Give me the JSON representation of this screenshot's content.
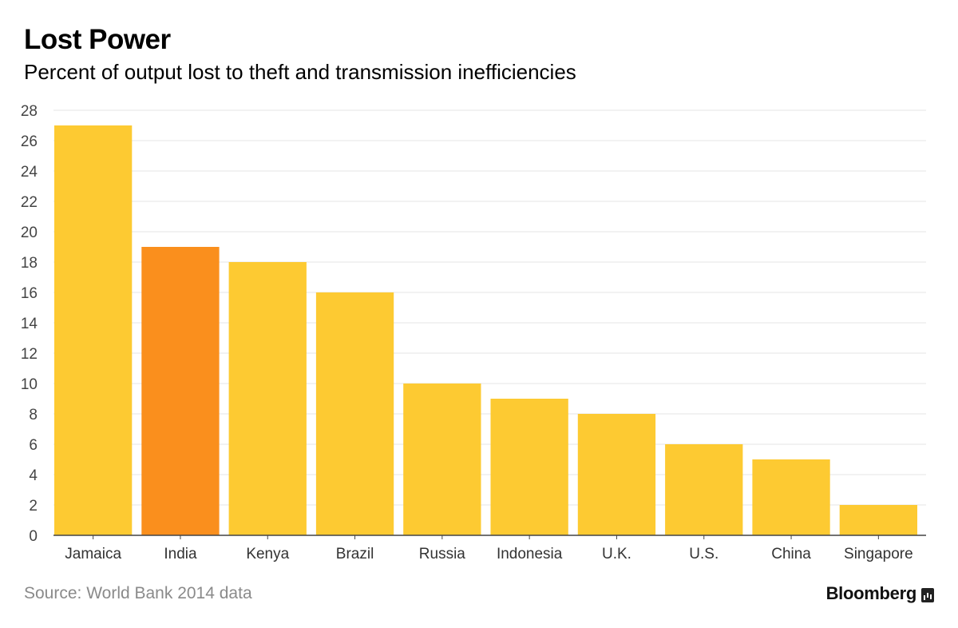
{
  "header": {
    "title": "Lost Power",
    "subtitle": "Percent of output lost to theft and transmission inefficiencies"
  },
  "footer": {
    "source": "Source: World Bank 2014 data",
    "brand": "Bloomberg"
  },
  "colors": {
    "bar": "#fdca32",
    "highlight": "#fa8f1d",
    "grid": "#e5e5e5",
    "axis": "#444444"
  },
  "chart_data": {
    "type": "bar",
    "title": "Lost Power",
    "subtitle": "Percent of output lost to theft and transmission inefficiencies",
    "xlabel": "",
    "ylabel": "",
    "categories": [
      "Jamaica",
      "India",
      "Kenya",
      "Brazil",
      "Russia",
      "Indonesia",
      "U.K.",
      "U.S.",
      "China",
      "Singapore"
    ],
    "values": [
      27,
      19,
      18,
      16,
      10,
      9,
      8,
      6,
      5,
      2
    ],
    "highlighted": [
      "India"
    ],
    "ylim": [
      0,
      28
    ],
    "yticks": [
      0,
      2,
      4,
      6,
      8,
      10,
      12,
      14,
      16,
      18,
      20,
      22,
      24,
      26,
      28
    ],
    "grid": true,
    "legend": "none"
  }
}
